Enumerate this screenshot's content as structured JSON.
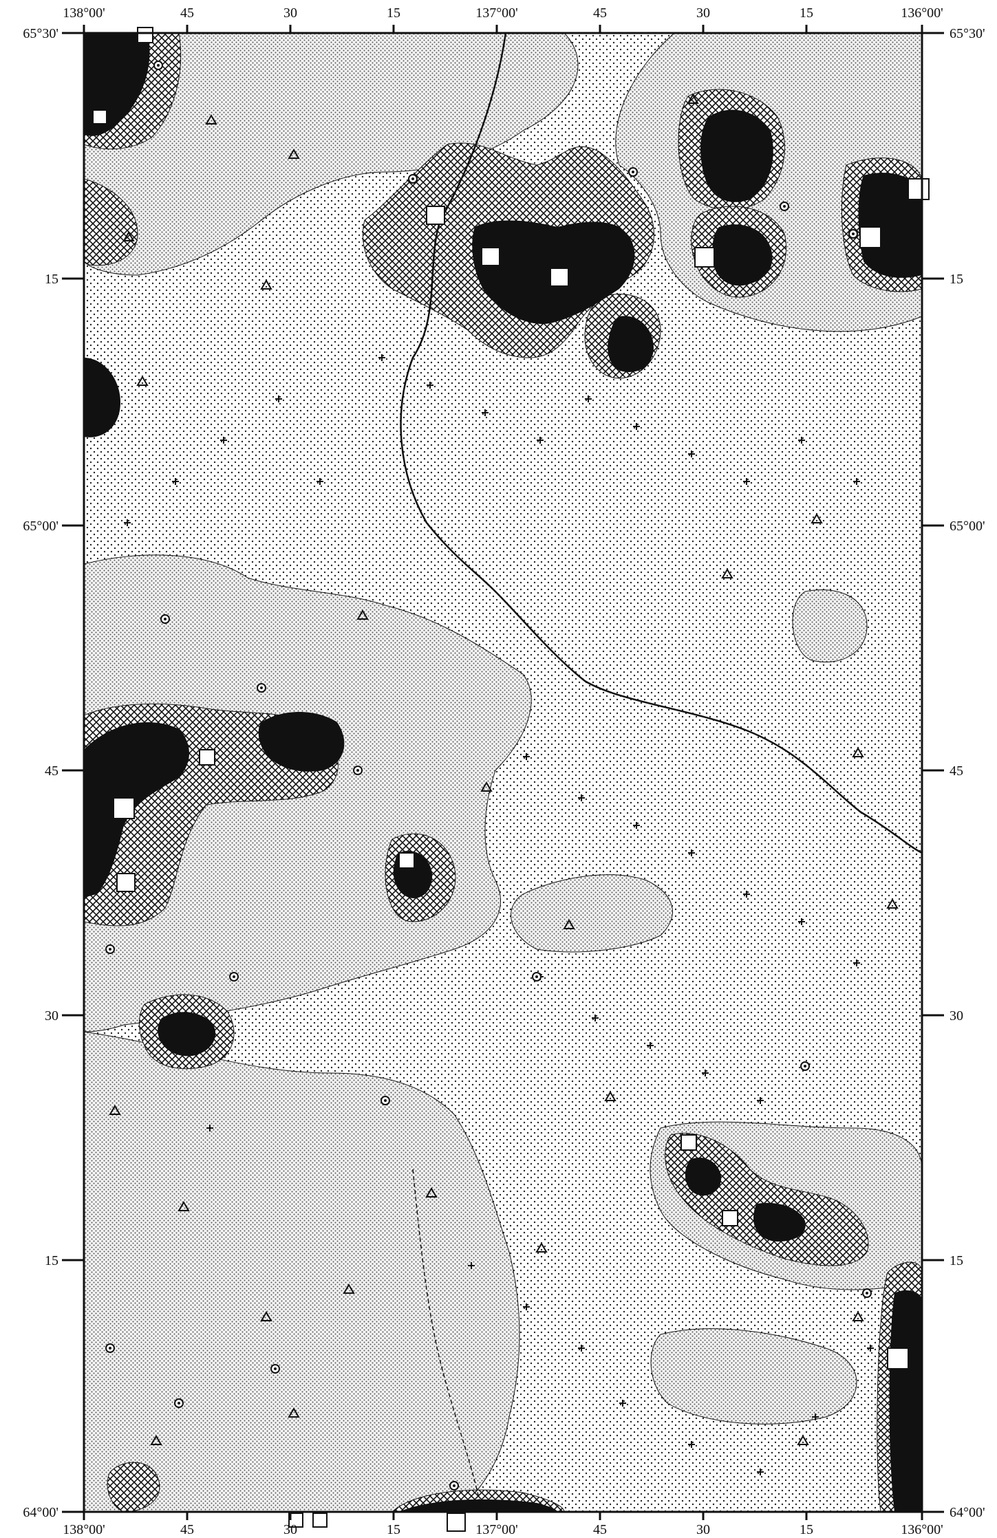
{
  "map": {
    "top_labels": [
      "138°00'",
      "45",
      "30",
      "15",
      "137°00'",
      "45",
      "30",
      "15",
      "136°00'"
    ],
    "bottom_labels": [
      "138°00'",
      "45",
      "30",
      "15",
      "137°00'",
      "45",
      "30",
      "15",
      "136°00'"
    ],
    "left_labels": [
      "65°30'",
      "15",
      "65°00'",
      "45",
      "30",
      "15",
      "64°00'"
    ],
    "right_labels": [
      "65°30'",
      "15",
      "65°00'",
      "45",
      "30",
      "15",
      "64°00'"
    ],
    "colors": {
      "ink": "#111111",
      "light_fill": "#e8e8e8",
      "dotted_fill": "#d9d9d9",
      "stipple_fill": "#c4c4c4",
      "hatch_fill": "#8a8a8a",
      "solid_fill": "#111111"
    },
    "legend_symbols": [
      "cross-symbol",
      "triangle-symbol",
      "circle-dot-symbol",
      "square-dot-symbol",
      "open-square-symbol"
    ]
  }
}
